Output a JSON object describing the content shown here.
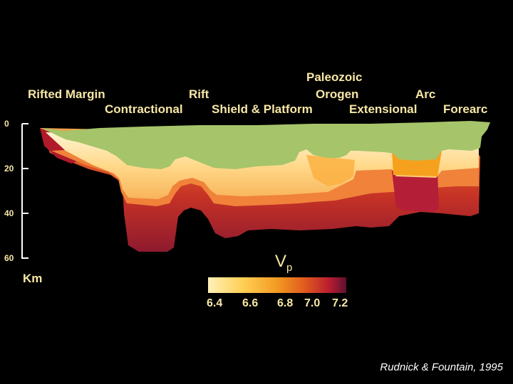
{
  "labels": {
    "rifted_margin": "Rifted Margin",
    "rift": "Rift",
    "paleozoic": "Paleozoic",
    "orogen": "Orogen",
    "arc": "Arc",
    "contractional": "Contractional",
    "shield_platform": "Shield & Platform",
    "extensional": "Extensional",
    "forearc": "Forearc"
  },
  "depth_axis": {
    "ticks": [
      "0",
      "20",
      "40",
      "60"
    ],
    "unit": "Km"
  },
  "legend": {
    "symbol": "V",
    "subscript": "p",
    "ticks": [
      "6.4",
      "6.6",
      "6.8",
      "7.0",
      "7.2"
    ],
    "colors": [
      "#fff0b8",
      "#ffd055",
      "#f39a22",
      "#e05a1e",
      "#b81c30",
      "#5c1030"
    ]
  },
  "credit": "Rudnick & Fountain, 1995",
  "colors": {
    "background": "#000000",
    "label": "#f7e7a6",
    "upper_crust": "#a6c46a"
  }
}
